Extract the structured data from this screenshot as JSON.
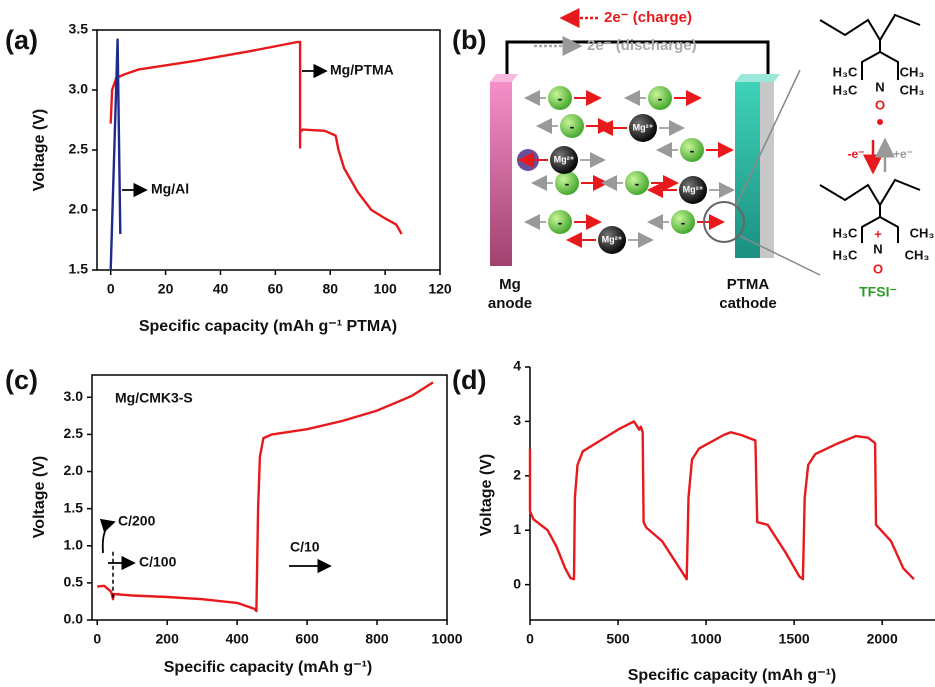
{
  "chart_data": [
    {
      "type": "line",
      "panel": "(a)",
      "box": true,
      "xlabel": "Specific capacity (mAh g⁻¹ PTMA)",
      "ylabel": "Voltage (V)",
      "xlim": [
        -5,
        120
      ],
      "ylim": [
        1.5,
        3.5
      ],
      "xticks": [
        0,
        20,
        40,
        60,
        80,
        100,
        120
      ],
      "yticks": [
        1.5,
        {
          "value": 2,
          "label": "2.0"
        },
        2.5,
        {
          "value": 3,
          "label": "3.0"
        },
        3.5
      ],
      "series": [
        {
          "name": "Mg/PTMA",
          "color": "#e8191c",
          "x": [
            0,
            0.5,
            2,
            5,
            10,
            30,
            50,
            68,
            69,
            69,
            69,
            70,
            78,
            82,
            83,
            85,
            90,
            95,
            100,
            104,
            106
          ],
          "values": [
            2.72,
            3.0,
            3.1,
            3.13,
            3.17,
            3.24,
            3.32,
            3.4,
            3.4,
            2.52,
            2.65,
            2.67,
            2.66,
            2.62,
            2.5,
            2.35,
            2.15,
            2.0,
            1.93,
            1.88,
            1.8
          ]
        },
        {
          "name": "Mg/Al",
          "color": "#1f2a8c",
          "x": [
            0,
            2.5,
            3.5
          ],
          "values": [
            1.5,
            3.42,
            1.8
          ]
        }
      ]
    },
    {
      "type": "line",
      "panel": "(c)",
      "box": true,
      "xlabel": "Specific capacity (mAh g⁻¹)",
      "ylabel": "Voltage (V)",
      "xlim": [
        -15,
        1000
      ],
      "ylim": [
        0,
        3.3
      ],
      "xticks": [
        0,
        200,
        400,
        600,
        800,
        1000
      ],
      "yticks": [
        {
          "value": 0,
          "label": "0.0"
        },
        0.5,
        {
          "value": 1,
          "label": "1.0"
        },
        1.5,
        {
          "value": 2,
          "label": "2.0"
        },
        2.5,
        {
          "value": 3,
          "label": "3.0"
        }
      ],
      "annotations": [
        "C/200",
        "C/100",
        "C/10"
      ],
      "series": [
        {
          "name": "Mg/CMK3-S",
          "color": "#e8191c",
          "x": [
            0,
            20,
            40,
            45,
            48,
            100,
            200,
            300,
            400,
            450,
            455,
            460,
            465,
            475,
            500,
            600,
            700,
            800,
            900,
            960
          ],
          "values": [
            0.45,
            0.46,
            0.38,
            0.28,
            0.35,
            0.33,
            0.31,
            0.28,
            0.23,
            0.15,
            0.12,
            1.5,
            2.2,
            2.45,
            2.5,
            2.57,
            2.68,
            2.82,
            3.02,
            3.2
          ]
        },
        {
          "color": "#000000",
          "dash": true,
          "x": [
            45,
            45
          ],
          "values": [
            0.3,
            0.95
          ]
        }
      ]
    },
    {
      "type": "line",
      "panel": "(d)",
      "box": false,
      "xlabel": "Specific capacity (mAh g⁻¹)",
      "ylabel": "Voltage (V)",
      "xlim": [
        0,
        2300
      ],
      "ylim": [
        -0.65,
        4
      ],
      "xticks": [
        0,
        500,
        1000,
        1500,
        2000
      ],
      "yticks": [
        0,
        1,
        2,
        3,
        4
      ],
      "series": [
        {
          "color": "#e8191c",
          "x": [
            0,
            0,
            20,
            100,
            150,
            200,
            230,
            250,
            255,
            270,
            300,
            400,
            500,
            590,
            610,
            620,
            630,
            640,
            645,
            660,
            750,
            850,
            890,
            900,
            920,
            960,
            1100,
            1140,
            1200,
            1280,
            1290,
            1350,
            1450,
            1530,
            1550,
            1560,
            1580,
            1620,
            1750,
            1850,
            1920,
            1960,
            1965,
            2050,
            2120,
            2180
          ],
          "values": [
            2.5,
            1.35,
            1.2,
            1.0,
            0.7,
            0.3,
            0.12,
            0.1,
            1.6,
            2.2,
            2.45,
            2.65,
            2.85,
            3.0,
            2.9,
            2.85,
            2.9,
            2.8,
            1.15,
            1.05,
            0.8,
            0.3,
            0.1,
            1.6,
            2.3,
            2.5,
            2.75,
            2.8,
            2.75,
            2.65,
            1.15,
            1.1,
            0.6,
            0.15,
            0.1,
            1.6,
            2.2,
            2.4,
            2.6,
            2.73,
            2.7,
            2.6,
            1.1,
            0.8,
            0.3,
            0.1
          ]
        }
      ]
    }
  ],
  "diagram": {
    "panel": "(b)",
    "charge": "2e⁻ (charge)",
    "discharge": "2e⁻ (discharge)",
    "anode": [
      "Mg",
      "anode"
    ],
    "cathode": [
      "PTMA",
      "cathode"
    ],
    "ions": [
      "Mg²⁺",
      "Mg²⁺",
      "Mg²⁺",
      "Mg²⁺"
    ],
    "anions": [
      "-",
      "-",
      "-",
      "-",
      "-",
      "-",
      "-",
      "-"
    ],
    "structure_top": [
      "H₃C",
      "CH₃",
      "H₃C",
      "CH₃",
      "N",
      "O"
    ],
    "redox": [
      "-e⁻",
      "+e⁻"
    ],
    "structure_bottom": [
      "H₃C",
      "CH₃",
      "H₃C",
      "CH₃",
      "N",
      "O",
      "+"
    ],
    "counter_ion": "TFSI⁻"
  }
}
